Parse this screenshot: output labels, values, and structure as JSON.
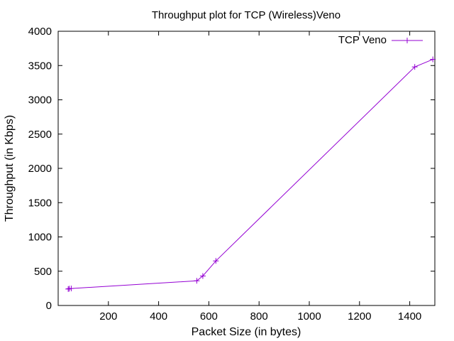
{
  "chart_data": {
    "type": "line",
    "title": "Throughput plot for TCP (Wireless)Veno",
    "xlabel": "Packet Size (in bytes)",
    "ylabel": "Throughput (in Kbps)",
    "xlim": [
      0,
      1500
    ],
    "ylim": [
      0,
      4000
    ],
    "xticks": [
      200,
      400,
      600,
      800,
      1000,
      1200,
      1400
    ],
    "yticks": [
      0,
      500,
      1000,
      1500,
      2000,
      2500,
      3000,
      3500,
      4000
    ],
    "grid": false,
    "legend_position": "top-right",
    "series": [
      {
        "name": "TCP Veno",
        "color": "#9400d3",
        "marker": "plus",
        "points": [
          {
            "x": 40,
            "y": 240
          },
          {
            "x": 44,
            "y": 245
          },
          {
            "x": 52,
            "y": 248
          },
          {
            "x": 552,
            "y": 360
          },
          {
            "x": 576,
            "y": 430
          },
          {
            "x": 628,
            "y": 650
          },
          {
            "x": 1420,
            "y": 3480
          },
          {
            "x": 1492,
            "y": 3590
          }
        ]
      }
    ]
  }
}
